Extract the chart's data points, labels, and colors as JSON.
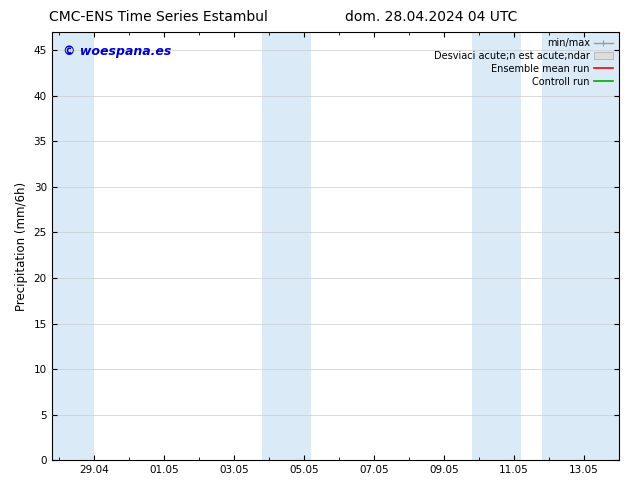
{
  "title_left": "CMC-ENS Time Series Estambul",
  "title_right": "dom. 28.04.2024 04 UTC",
  "ylabel": "Precipitation (mm/6h)",
  "ylim": [
    0,
    47
  ],
  "yticks": [
    0,
    5,
    10,
    15,
    20,
    25,
    30,
    35,
    40,
    45
  ],
  "xtick_labels": [
    "29.04",
    "01.05",
    "03.05",
    "05.05",
    "07.05",
    "09.05",
    "11.05",
    "13.05"
  ],
  "xtick_positions": [
    1,
    3,
    5,
    7,
    9,
    11,
    13,
    15
  ],
  "xlim": [
    -0.2,
    16.0
  ],
  "band_positions": [
    [
      -0.2,
      1.0
    ],
    [
      5.8,
      7.2
    ],
    [
      11.8,
      13.2
    ],
    [
      13.8,
      16.0
    ]
  ],
  "watermark_text": "© woespana.es",
  "watermark_color": "#0000cc",
  "background_color": "#ffffff",
  "plot_bg_color": "#ffffff",
  "band_color": "#daeaf7",
  "legend_labels": [
    "min/max",
    "Desviaci acute;n est acute;ndar",
    "Ensemble mean run",
    "Controll run"
  ],
  "legend_line_colors": [
    "#999999",
    "#cccccc",
    "#ff0000",
    "#00aa00"
  ],
  "title_fontsize": 10,
  "tick_fontsize": 7.5,
  "ylabel_fontsize": 8.5,
  "legend_fontsize": 7,
  "watermark_fontsize": 9
}
